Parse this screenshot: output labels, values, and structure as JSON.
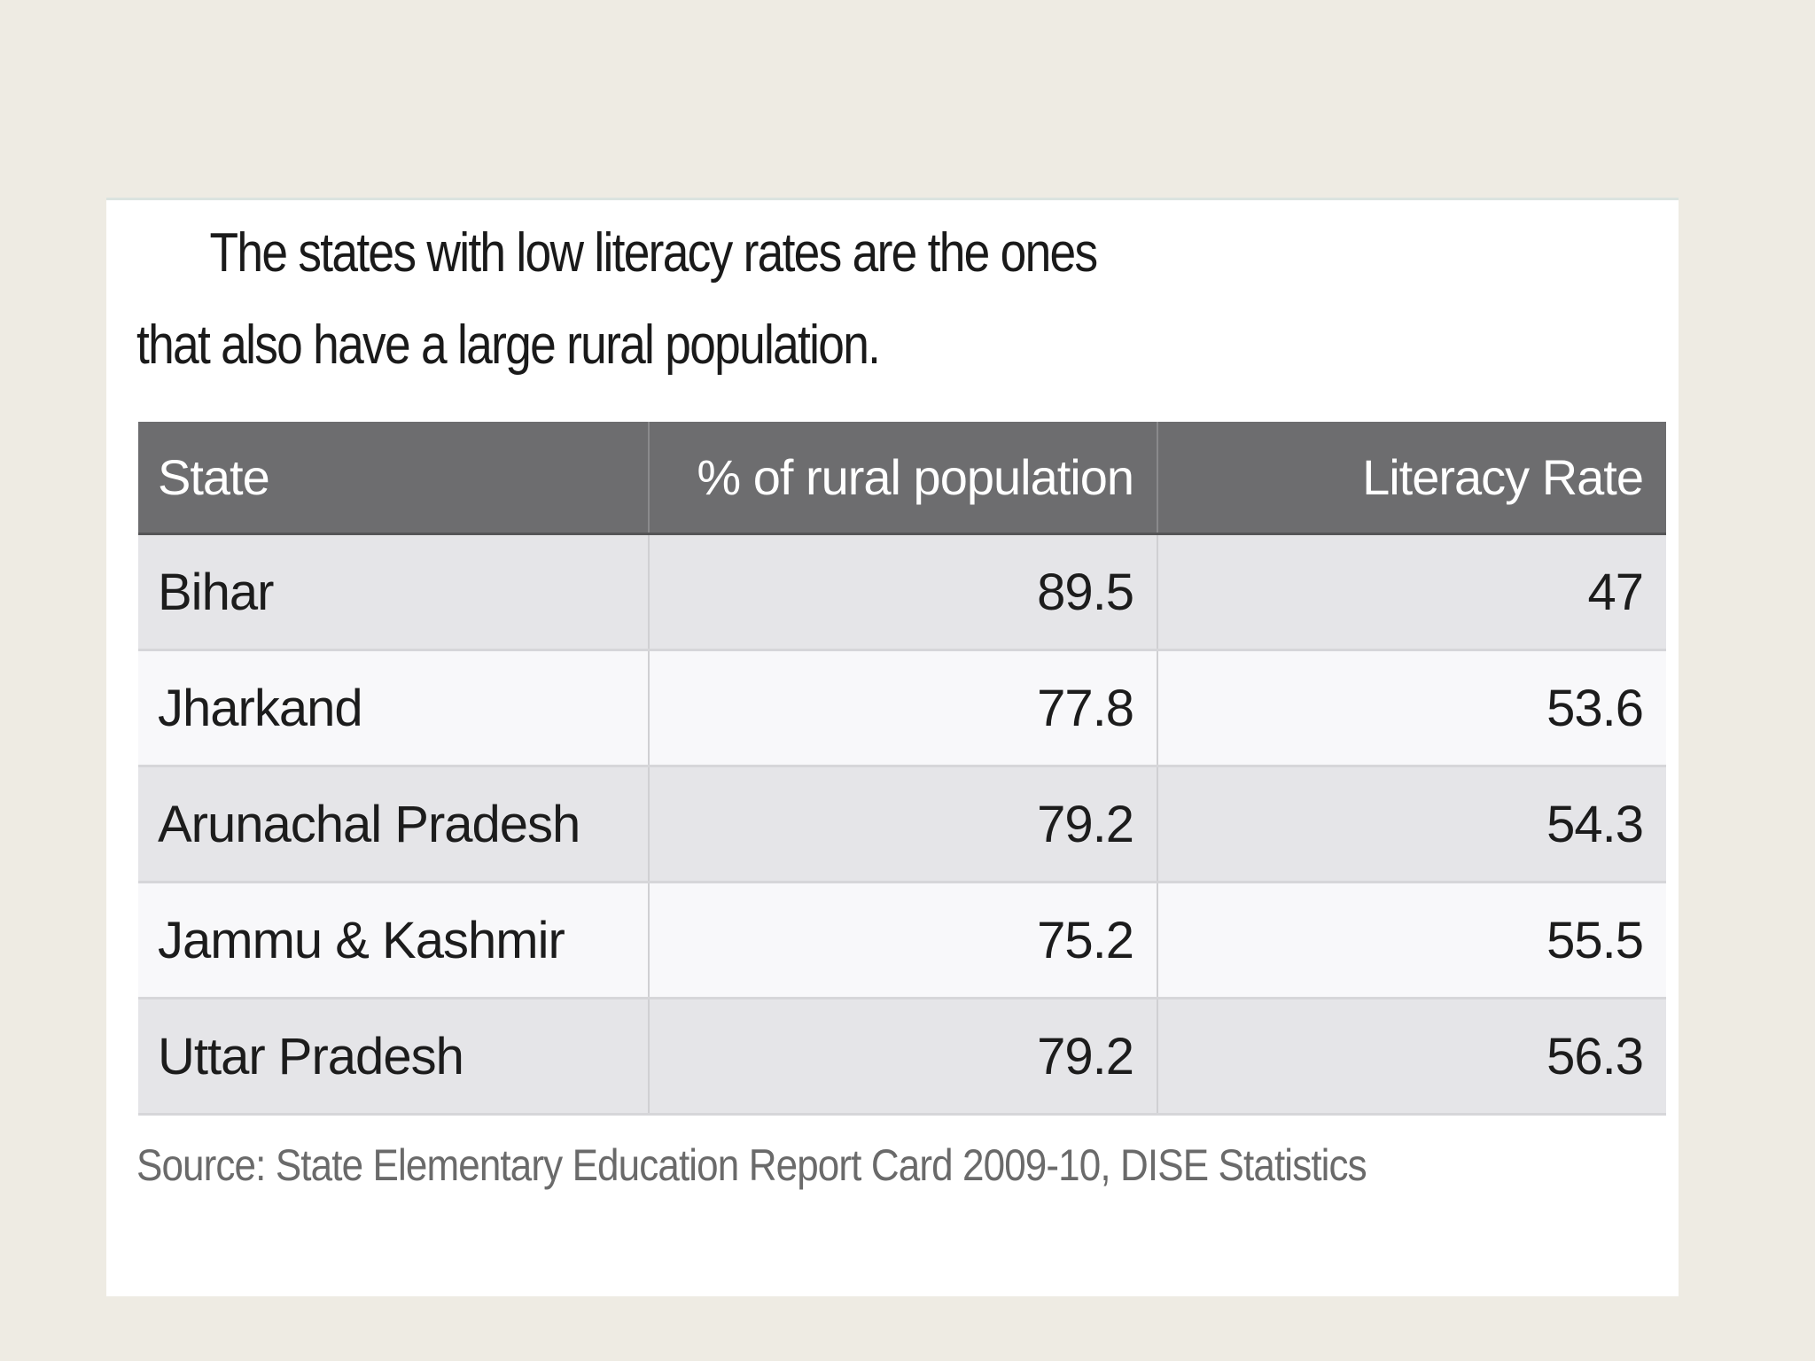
{
  "intro": {
    "text": "The states with low literacy rates are the ones that also have a large rural population."
  },
  "table": {
    "headers": [
      "State",
      "% of rural population",
      "Literacy Rate"
    ],
    "rows": [
      {
        "state": "Bihar",
        "rural": "89.5",
        "literacy": "47"
      },
      {
        "state": "Jharkand",
        "rural": "77.8",
        "literacy": "53.6"
      },
      {
        "state": "Arunachal Pradesh",
        "rural": "79.2",
        "literacy": "54.3"
      },
      {
        "state": "Jammu & Kashmir",
        "rural": "75.2",
        "literacy": "55.5"
      },
      {
        "state": "Uttar Pradesh",
        "rural": "79.2",
        "literacy": "56.3"
      }
    ]
  },
  "source": {
    "text": "Source: State Elementary Education Report Card 2009-10, DISE Statistics"
  }
}
